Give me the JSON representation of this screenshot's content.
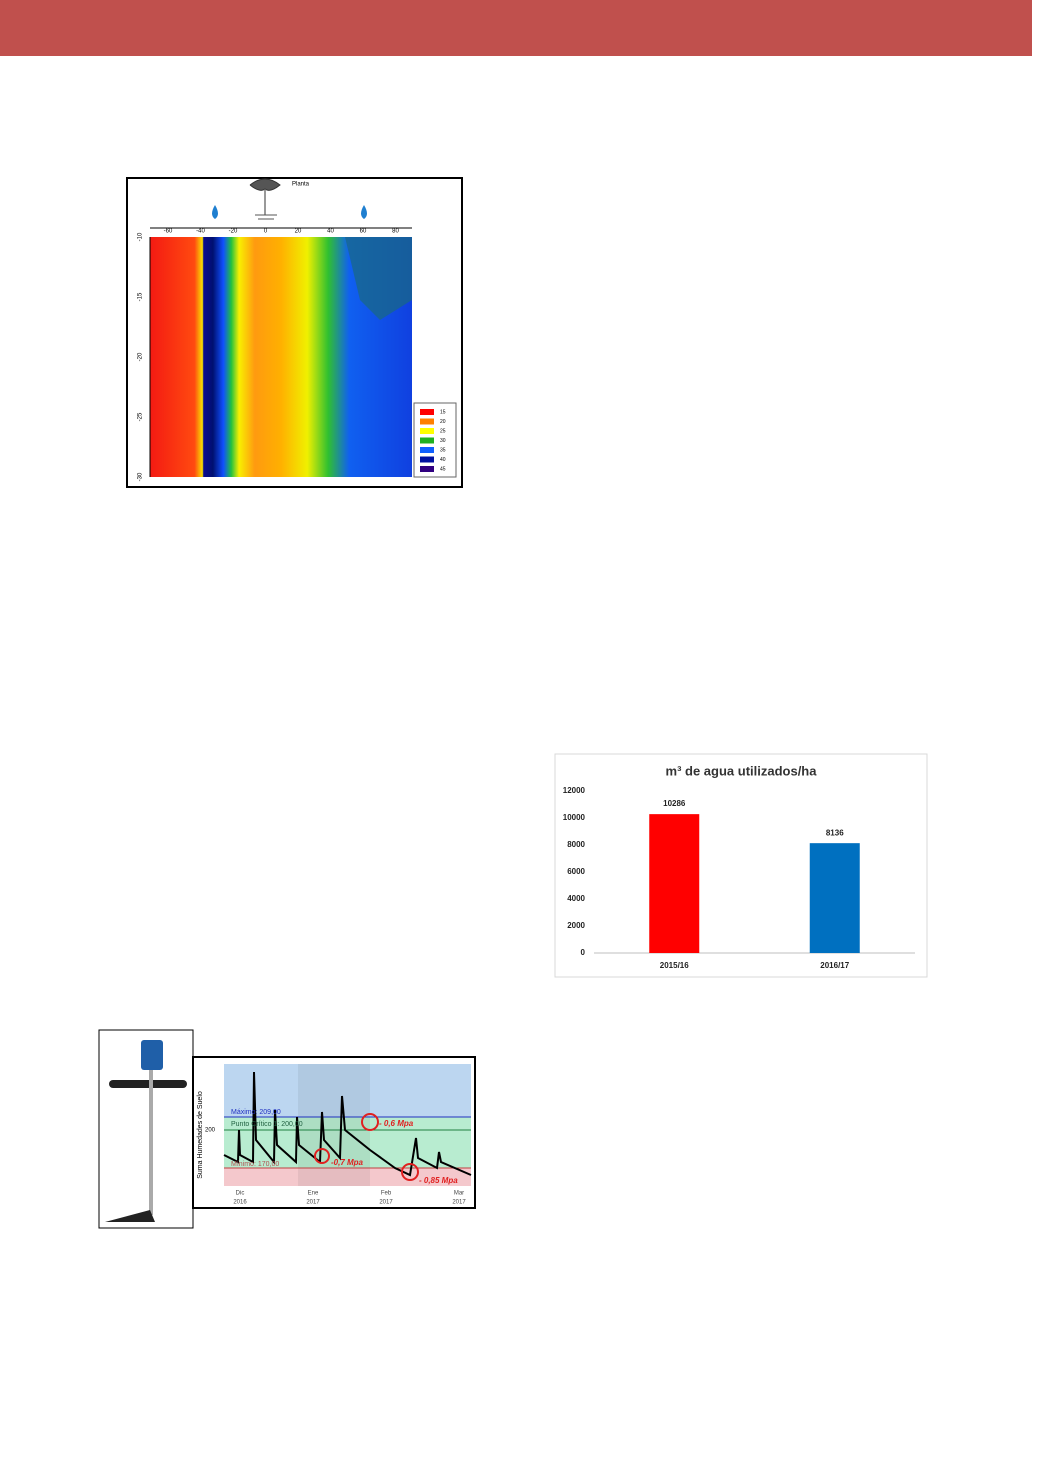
{
  "soil_map": {
    "plant_label": "Planta",
    "x_ticks": [
      "-60",
      "-40",
      "-20",
      "0",
      "20",
      "40",
      "60",
      "80"
    ],
    "y_ticks": [
      "-10",
      "-15",
      "-20",
      "-25",
      "-30"
    ],
    "legend": [
      "15",
      "20",
      "25",
      "30",
      "35",
      "40",
      "45"
    ]
  },
  "moisture_chart": {
    "y_label": "Suma Humedades de Suelo",
    "y_tick": "200",
    "max_line": "Máximo: 209,00",
    "critical_line": "Punto Crítico 1: 200,00",
    "min_line": "Mínimo: 170,00",
    "annotations": [
      "- 0,6 Mpa",
      "-0,7 Mpa",
      "- 0,85 Mpa"
    ],
    "months": [
      "Dic",
      "Ene",
      "Feb",
      "Mar"
    ],
    "years": [
      "2016",
      "2017",
      "2017",
      "2017"
    ]
  },
  "chart_data": {
    "type": "bar",
    "title": "m³ de agua utilizados/ha",
    "categories": [
      "2015/16",
      "2016/17"
    ],
    "values": [
      10286,
      8136
    ],
    "colors": [
      "#ff0000",
      "#0070c0"
    ],
    "ylim": [
      0,
      12000
    ],
    "yticks": [
      0,
      2000,
      4000,
      6000,
      8000,
      10000,
      12000
    ],
    "grid": false
  }
}
